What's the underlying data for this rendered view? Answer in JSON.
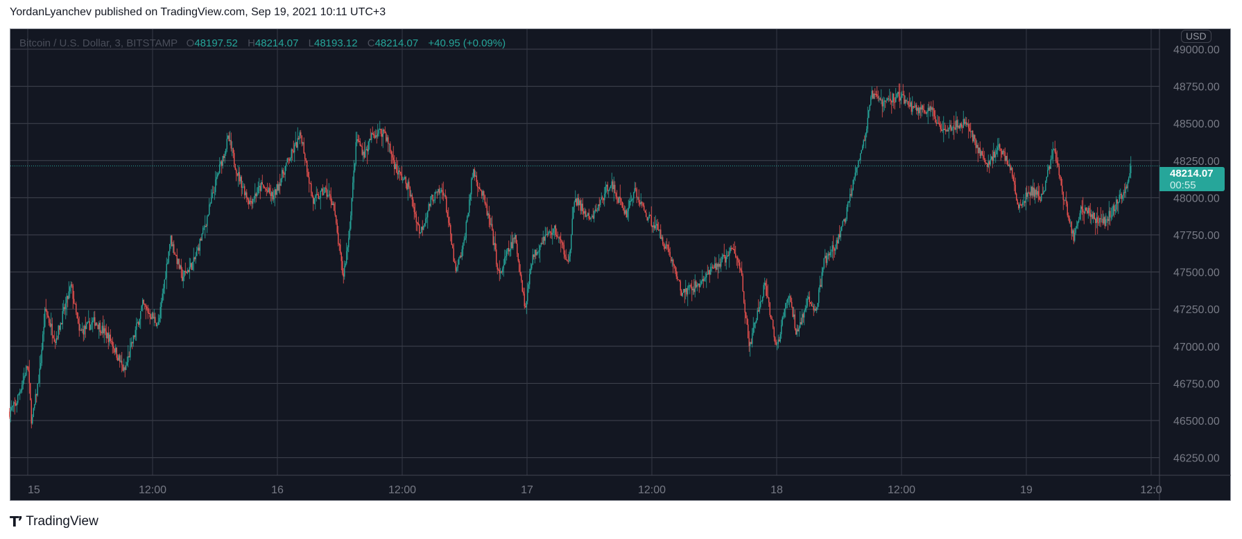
{
  "header": {
    "published": "YordanLyanchev published on TradingView.com, Sep 19, 2021 10:11 UTC+3"
  },
  "legend": {
    "symbol": "Bitcoin / U.S. Dollar, 3, BITSTAMP",
    "o_label": "O",
    "o": "48197.52",
    "h_label": "H",
    "h": "48214.07",
    "l_label": "L",
    "l": "48193.12",
    "c_label": "C",
    "c": "48214.07",
    "change": "+40.95 (+0.09%)"
  },
  "currency": "USD",
  "last": {
    "price": "48214.07",
    "countdown": "00:55"
  },
  "footer": {
    "brand": "TradingView",
    "logo_mark": "TV"
  },
  "colors": {
    "background": "#131722",
    "up": "#26a69a",
    "down": "#ef5350",
    "grid": "#363a45"
  },
  "chart_data": {
    "type": "candlestick",
    "interval": "3",
    "ylim": [
      46150,
      49060
    ],
    "y_ticks": [
      "49000.00",
      "48750.00",
      "48500.00",
      "48250.00",
      "48000.00",
      "47750.00",
      "47500.00",
      "47250.00",
      "47000.00",
      "46750.00",
      "46500.00",
      "46250.00"
    ],
    "x_ticks": [
      "15",
      "12:00",
      "16",
      "12:00",
      "17",
      "12:00",
      "18",
      "12:00",
      "19",
      "12:0"
    ],
    "grid": true,
    "approx_close_path": [
      [
        "Sep 14 22:15",
        46560
      ],
      [
        "Sep 14 22:51",
        46610
      ],
      [
        "Sep 15 00:00",
        46880
      ],
      [
        "Sep 15 00:23",
        46480
      ],
      [
        "Sep 15 01:09",
        46825
      ],
      [
        "Sep 15 01:41",
        47250
      ],
      [
        "Sep 15 02:40",
        47040
      ],
      [
        "Sep 15 04:11",
        47410
      ],
      [
        "Sep 15 04:57",
        47090
      ],
      [
        "Sep 15 06:29",
        47170
      ],
      [
        "Sep 15 08:00",
        47040
      ],
      [
        "Sep 15 09:18",
        46825
      ],
      [
        "Sep 15 09:54",
        46985
      ],
      [
        "Sep 15 11:03",
        47280
      ],
      [
        "Sep 15 12:34",
        47145
      ],
      [
        "Sep 15 13:43",
        47730
      ],
      [
        "Sep 15 14:51",
        47465
      ],
      [
        "Sep 15 16:00",
        47570
      ],
      [
        "Sep 15 17:09",
        47840
      ],
      [
        "Sep 15 18:17",
        48160
      ],
      [
        "Sep 15 19:17",
        48400
      ],
      [
        "Sep 15 20:11",
        48160
      ],
      [
        "Sep 15 21:20",
        47970
      ],
      [
        "Sep 15 22:29",
        48080
      ],
      [
        "Sep 15 23:37",
        48000
      ],
      [
        "Sep 16 00:46",
        48210
      ],
      [
        "Sep 16 02:17",
        48425
      ],
      [
        "Sep 16 03:26",
        47970
      ],
      [
        "Sep 16 04:34",
        48050
      ],
      [
        "Sep 16 05:20",
        47970
      ],
      [
        "Sep 16 06:19",
        47465
      ],
      [
        "Sep 16 06:51",
        47730
      ],
      [
        "Sep 16 07:37",
        48400
      ],
      [
        "Sep 16 08:23",
        48290
      ],
      [
        "Sep 16 09:08",
        48425
      ],
      [
        "Sep 16 10:17",
        48450
      ],
      [
        "Sep 16 11:26",
        48185
      ],
      [
        "Sep 16 12:34",
        48080
      ],
      [
        "Sep 16 13:43",
        47760
      ],
      [
        "Sep 16 14:51",
        48000
      ],
      [
        "Sep 16 16:00",
        48050
      ],
      [
        "Sep 16 17:09",
        47490
      ],
      [
        "Sep 16 17:54",
        47680
      ],
      [
        "Sep 16 18:49",
        48185
      ],
      [
        "Sep 16 19:48",
        48000
      ],
      [
        "Sep 16 20:34",
        47785
      ],
      [
        "Sep 16 21:20",
        47465
      ],
      [
        "Sep 16 22:06",
        47625
      ],
      [
        "Sep 16 22:51",
        47730
      ],
      [
        "Sep 16 23:51",
        47250
      ],
      [
        "Sep 17 00:23",
        47570
      ],
      [
        "Sep 17 01:31",
        47730
      ],
      [
        "Sep 17 02:40",
        47785
      ],
      [
        "Sep 17 04:02",
        47570
      ],
      [
        "Sep 17 04:34",
        48000
      ],
      [
        "Sep 17 06:06",
        47840
      ],
      [
        "Sep 17 08:00",
        48105
      ],
      [
        "Sep 17 09:31",
        47890
      ],
      [
        "Sep 17 10:17",
        48050
      ],
      [
        "Sep 17 11:26",
        47890
      ],
      [
        "Sep 17 12:34",
        47785
      ],
      [
        "Sep 17 13:43",
        47625
      ],
      [
        "Sep 17 14:51",
        47360
      ],
      [
        "Sep 17 16:23",
        47410
      ],
      [
        "Sep 17 17:54",
        47520
      ],
      [
        "Sep 17 19:49",
        47650
      ],
      [
        "Sep 17 20:34",
        47520
      ],
      [
        "Sep 17 21:20",
        46985
      ],
      [
        "Sep 17 22:06",
        47200
      ],
      [
        "Sep 17 22:51",
        47410
      ],
      [
        "Sep 18 00:00",
        46985
      ],
      [
        "Sep 18 01:09",
        47360
      ],
      [
        "Sep 18 01:54",
        47090
      ],
      [
        "Sep 18 03:03",
        47305
      ],
      [
        "Sep 18 03:49",
        47250
      ],
      [
        "Sep 18 04:34",
        47570
      ],
      [
        "Sep 18 05:43",
        47680
      ],
      [
        "Sep 18 06:42",
        47890
      ],
      [
        "Sep 18 07:37",
        48210
      ],
      [
        "Sep 18 08:23",
        48370
      ],
      [
        "Sep 18 09:09",
        48690
      ],
      [
        "Sep 18 10:17",
        48640
      ],
      [
        "Sep 18 11:49",
        48690
      ],
      [
        "Sep 18 12:57",
        48610
      ],
      [
        "Sep 18 14:51",
        48585
      ],
      [
        "Sep 18 15:37",
        48480
      ],
      [
        "Sep 18 16:46",
        48480
      ],
      [
        "Sep 18 18:17",
        48505
      ],
      [
        "Sep 18 19:26",
        48320
      ],
      [
        "Sep 18 20:11",
        48210
      ],
      [
        "Sep 18 21:20",
        48345
      ],
      [
        "Sep 18 22:29",
        48210
      ],
      [
        "Sep 18 23:14",
        47920
      ],
      [
        "Sep 19 00:23",
        48050
      ],
      [
        "Sep 19 01:31",
        48000
      ],
      [
        "Sep 19 02:40",
        48345
      ],
      [
        "Sep 19 03:26",
        48050
      ],
      [
        "Sep 19 04:34",
        47730
      ],
      [
        "Sep 19 05:20",
        47945
      ],
      [
        "Sep 19 06:29",
        47865
      ],
      [
        "Sep 19 07:37",
        47840
      ],
      [
        "Sep 19 08:46",
        47970
      ],
      [
        "Sep 19 09:31",
        48050
      ],
      [
        "Sep 19 10:03",
        48214
      ]
    ]
  }
}
